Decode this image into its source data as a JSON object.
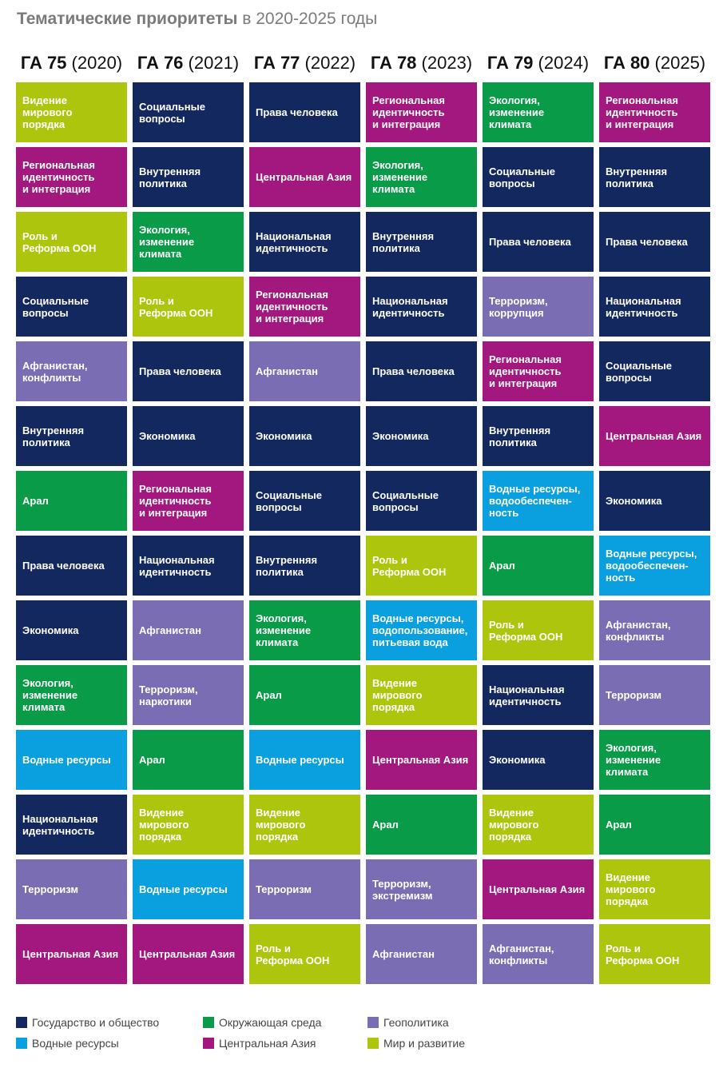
{
  "header": {
    "title_bold": "Тематические приоритеты",
    "title_rest": " в 2020-2025 годы"
  },
  "colors": {
    "state": "#13285e",
    "env": "#0a9b48",
    "geo": "#7a6db4",
    "water": "#0aa0e0",
    "ca": "#a2187e",
    "peace": "#adc60d"
  },
  "columns": [
    {
      "ga": "ГА 75",
      "year": " (2020)",
      "items": [
        {
          "text": "Видение\nмирового\nпорядка",
          "cat": "peace"
        },
        {
          "text": "Региональная\nидентичность\nи интеграция",
          "cat": "ca"
        },
        {
          "text": "Роль и\nРеформа ООН",
          "cat": "peace"
        },
        {
          "text": "Социальные\nвопросы",
          "cat": "state"
        },
        {
          "text": "Афганистан,\nконфликты",
          "cat": "geo"
        },
        {
          "text": "Внутренняя\nполитика",
          "cat": "state"
        },
        {
          "text": "Арал",
          "cat": "env"
        },
        {
          "text": "Права человека",
          "cat": "state"
        },
        {
          "text": "Экономика",
          "cat": "state"
        },
        {
          "text": "Экология,\nизменение\nклимата",
          "cat": "env"
        },
        {
          "text": "Водные ресурсы",
          "cat": "water"
        },
        {
          "text": "Национальная\nидентичность",
          "cat": "state"
        },
        {
          "text": "Терроризм",
          "cat": "geo"
        },
        {
          "text": "Центральная Азия",
          "cat": "ca"
        }
      ]
    },
    {
      "ga": "ГА 76",
      "year": " (2021)",
      "items": [
        {
          "text": "Социальные\nвопросы",
          "cat": "state"
        },
        {
          "text": "Внутренняя\nполитика",
          "cat": "state"
        },
        {
          "text": "Экология,\nизменение\nклимата",
          "cat": "env"
        },
        {
          "text": "Роль и\nРеформа ООН",
          "cat": "peace"
        },
        {
          "text": "Права человека",
          "cat": "state"
        },
        {
          "text": "Экономика",
          "cat": "state"
        },
        {
          "text": "Региональная\nидентичность\nи интеграция",
          "cat": "ca"
        },
        {
          "text": "Национальная\nидентичность",
          "cat": "state"
        },
        {
          "text": "Афганистан",
          "cat": "geo"
        },
        {
          "text": "Терроризм,\nнаркотики",
          "cat": "geo"
        },
        {
          "text": "Арал",
          "cat": "env"
        },
        {
          "text": "Видение\nмирового\nпорядка",
          "cat": "peace"
        },
        {
          "text": "Водные ресурсы",
          "cat": "water"
        },
        {
          "text": "Центральная Азия",
          "cat": "ca"
        }
      ]
    },
    {
      "ga": "ГА 77",
      "year": " (2022)",
      "items": [
        {
          "text": "Права человека",
          "cat": "state"
        },
        {
          "text": "Центральная Азия",
          "cat": "ca"
        },
        {
          "text": "Национальная\nидентичность",
          "cat": "state"
        },
        {
          "text": "Региональная\nидентичность\nи интеграция",
          "cat": "ca"
        },
        {
          "text": "Афганистан",
          "cat": "geo"
        },
        {
          "text": "Экономика",
          "cat": "state"
        },
        {
          "text": "Социальные\nвопросы",
          "cat": "state"
        },
        {
          "text": "Внутренняя\nполитика",
          "cat": "state"
        },
        {
          "text": "Экология,\nизменение\nклимата",
          "cat": "env"
        },
        {
          "text": "Арал",
          "cat": "env"
        },
        {
          "text": "Водные ресурсы",
          "cat": "water"
        },
        {
          "text": "Видение\nмирового\nпорядка",
          "cat": "peace"
        },
        {
          "text": "Терроризм",
          "cat": "geo"
        },
        {
          "text": "Роль и\nРеформа ООН",
          "cat": "peace"
        }
      ]
    },
    {
      "ga": "ГА 78",
      "year": " (2023)",
      "items": [
        {
          "text": "Региональная\nидентичность\nи интеграция",
          "cat": "ca"
        },
        {
          "text": "Экология,\nизменение\nклимата",
          "cat": "env"
        },
        {
          "text": "Внутренняя\nполитика",
          "cat": "state"
        },
        {
          "text": "Национальная\nидентичность",
          "cat": "state"
        },
        {
          "text": "Права человека",
          "cat": "state"
        },
        {
          "text": "Экономика",
          "cat": "state"
        },
        {
          "text": "Социальные\nвопросы",
          "cat": "state"
        },
        {
          "text": "Роль и\nРеформа ООН",
          "cat": "peace"
        },
        {
          "text": "Водные ресурсы,\nводопользование,\nпитьевая вода",
          "cat": "water"
        },
        {
          "text": "Видение\nмирового\nпорядка",
          "cat": "peace"
        },
        {
          "text": "Центральная Азия",
          "cat": "ca"
        },
        {
          "text": "Арал",
          "cat": "env"
        },
        {
          "text": "Терроризм,\nэкстремизм",
          "cat": "geo"
        },
        {
          "text": "Афганистан",
          "cat": "geo"
        }
      ]
    },
    {
      "ga": "ГА 79",
      "year": " (2024)",
      "items": [
        {
          "text": "Экология,\nизменение\nклимата",
          "cat": "env"
        },
        {
          "text": "Социальные\nвопросы",
          "cat": "state"
        },
        {
          "text": "Права человека",
          "cat": "state"
        },
        {
          "text": "Терроризм,\nкоррупция",
          "cat": "geo"
        },
        {
          "text": "Региональная\nидентичность\nи интеграция",
          "cat": "ca"
        },
        {
          "text": "Внутренняя\nполитика",
          "cat": "state"
        },
        {
          "text": "Водные ресурсы,\nводообеспечен-\nность",
          "cat": "water"
        },
        {
          "text": "Арал",
          "cat": "env"
        },
        {
          "text": "Роль и\nРеформа ООН",
          "cat": "peace"
        },
        {
          "text": "Национальная\nидентичность",
          "cat": "state"
        },
        {
          "text": "Экономика",
          "cat": "state"
        },
        {
          "text": "Видение\nмирового\nпорядка",
          "cat": "peace"
        },
        {
          "text": "Центральная Азия",
          "cat": "ca"
        },
        {
          "text": "Афганистан,\nконфликты",
          "cat": "geo"
        }
      ]
    },
    {
      "ga": "ГА 80",
      "year": " (2025)",
      "items": [
        {
          "text": "Региональная\nидентичность\nи интеграция",
          "cat": "ca"
        },
        {
          "text": "Внутренняя\nполитика",
          "cat": "state"
        },
        {
          "text": "Права человека",
          "cat": "state"
        },
        {
          "text": "Национальная\nидентичность",
          "cat": "state"
        },
        {
          "text": "Социальные\nвопросы",
          "cat": "state"
        },
        {
          "text": "Центральная Азия",
          "cat": "ca"
        },
        {
          "text": "Экономика",
          "cat": "state"
        },
        {
          "text": "Водные ресурсы,\nводообеспечен-\nность",
          "cat": "water"
        },
        {
          "text": "Афганистан,\nконфликты",
          "cat": "geo"
        },
        {
          "text": "Терроризм",
          "cat": "geo"
        },
        {
          "text": "Экология,\nизменение\nклимата",
          "cat": "env"
        },
        {
          "text": "Арал",
          "cat": "env"
        },
        {
          "text": "Видение\nмирового\nпорядка",
          "cat": "peace"
        },
        {
          "text": "Роль и\nРеформа ООН",
          "cat": "peace"
        }
      ]
    }
  ],
  "legend": [
    {
      "label": "Государство и общество",
      "cat": "state"
    },
    {
      "label": "Водные ресурсы",
      "cat": "water"
    },
    {
      "label": "Окружающая среда",
      "cat": "env"
    },
    {
      "label": "Центральная Азия",
      "cat": "ca"
    },
    {
      "label": "Геополитика",
      "cat": "geo"
    },
    {
      "label": "Мир и развитие",
      "cat": "peace"
    }
  ]
}
